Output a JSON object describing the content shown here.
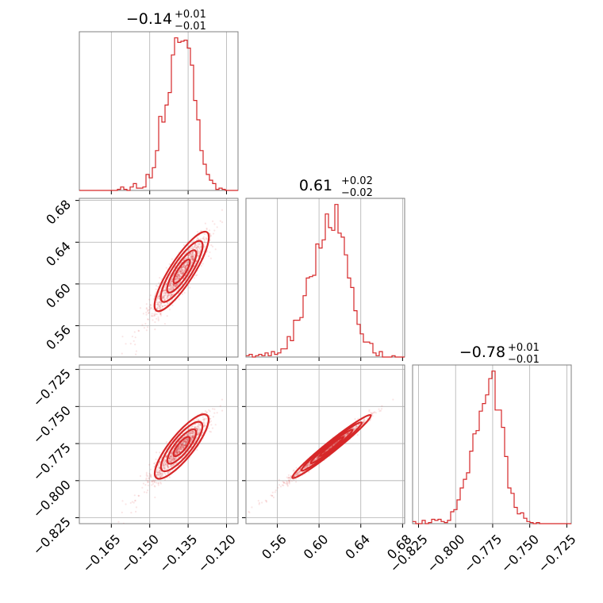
{
  "chart_data": {
    "type": "corner",
    "color": "#d62728",
    "grid": true,
    "params": [
      {
        "title_value": "−0.14",
        "title_plus": "+0.01",
        "title_minus": "−0.01",
        "center": -0.1375,
        "sigma": 0.0042,
        "range": [
          -0.1775,
          -0.1155
        ],
        "ticks": [
          -0.165,
          -0.15,
          -0.135,
          -0.12
        ],
        "tick_labels": [
          "−0.165",
          "−0.150",
          "−0.135",
          "−0.120"
        ]
      },
      {
        "title_value": "0.61",
        "title_plus": "+0.02",
        "title_minus": "−0.02",
        "center": 0.612,
        "sigma": 0.016,
        "range": [
          0.53,
          0.682
        ],
        "ticks": [
          0.56,
          0.6,
          0.64,
          0.68
        ],
        "tick_labels": [
          "0.56",
          "0.60",
          "0.64",
          "0.68"
        ]
      },
      {
        "title_value": "−0.78",
        "title_plus": "+0.01",
        "title_minus": "−0.01",
        "center": -0.777,
        "sigma": 0.009,
        "range": [
          -0.829,
          -0.722
        ],
        "ticks": [
          -0.825,
          -0.8,
          -0.775,
          -0.75,
          -0.725
        ],
        "tick_labels": [
          "−0.825",
          "−0.800",
          "−0.775",
          "−0.750",
          "−0.725"
        ]
      }
    ]
  }
}
